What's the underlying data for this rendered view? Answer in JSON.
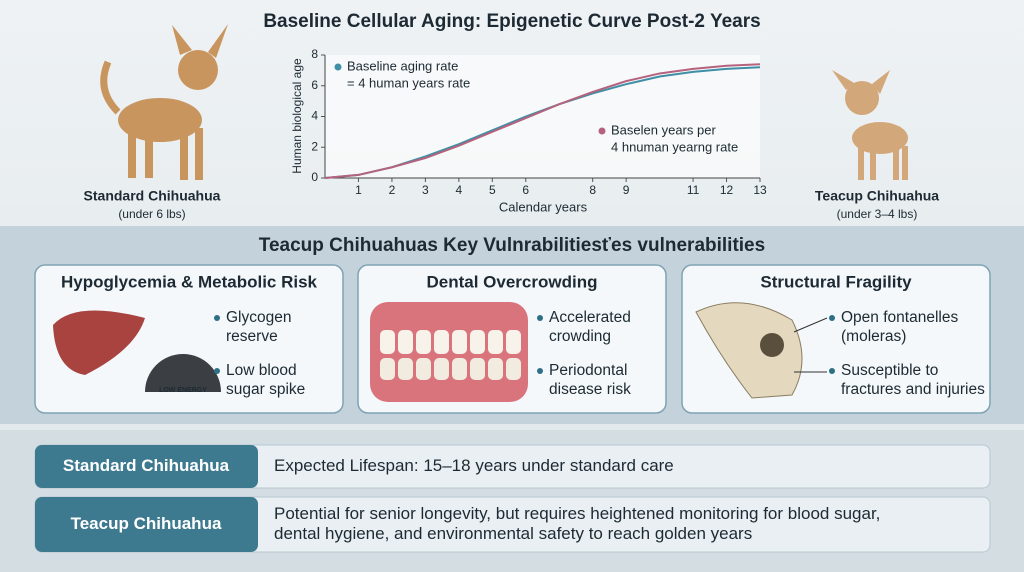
{
  "chart_data": {
    "type": "line",
    "title": "Baseline Cellular Aging: Epigenetic Curve Post-2 Years",
    "x_label": "Calendar years",
    "y_label": "Human biological age",
    "x": [
      0,
      1,
      2,
      3,
      4,
      5,
      6,
      7,
      8,
      9,
      10,
      11,
      12,
      13
    ],
    "series": [
      {
        "name": "Baseline aging rate",
        "color": "#3f8fa6",
        "values": [
          0,
          0.2,
          0.7,
          1.4,
          2.2,
          3.1,
          4.0,
          4.8,
          5.5,
          6.1,
          6.6,
          6.9,
          7.1,
          7.2
        ]
      },
      {
        "name": "Baselen years per",
        "color": "#b5627d",
        "values": [
          0,
          0.2,
          0.7,
          1.3,
          2.1,
          3.0,
          3.9,
          4.8,
          5.6,
          6.3,
          6.8,
          7.1,
          7.3,
          7.4
        ]
      }
    ],
    "legend_notes": [
      "= 4 human years rate",
      "4 hnuman yearng rate"
    ],
    "xlim": [
      0,
      13
    ],
    "ylim": [
      0,
      8
    ],
    "xticks": [
      1,
      2,
      3,
      4,
      5,
      6,
      8,
      9,
      11,
      12,
      13
    ],
    "yticks": [
      0,
      2,
      4,
      6,
      8
    ]
  },
  "dogs": [
    {
      "name": "Standard Chihuahua",
      "weight": "(under 6 lbs)"
    },
    {
      "name": "Teacup Chihuahua",
      "weight": "(under 3–4 lbs)"
    }
  ],
  "vulnerabilities": {
    "title": "Teacup Chihuahuas Key Vulnrabilitiesťes vulnerabilities",
    "cards": [
      {
        "title": "Hypoglycemia & Metabolic Risk",
        "badge": "LOW ENERGY",
        "bullets": [
          [
            "Glycogen",
            "reserve"
          ],
          [
            "Low blood",
            "sugar spike"
          ]
        ]
      },
      {
        "title": "Dental Overcrowding",
        "bullets": [
          [
            "Accelerated",
            "crowding"
          ],
          [
            "Periodontal",
            "disease risk"
          ]
        ]
      },
      {
        "title": "Structural Fragility",
        "bullets": [
          [
            "Open fontanelles",
            "(moleras)"
          ],
          [
            "Susceptible to",
            "fractures and injuries"
          ]
        ]
      }
    ]
  },
  "lifespan": [
    {
      "label": "Standard Chihuahua",
      "text": [
        "Expected Lifespan: 15–18 years under standard care"
      ]
    },
    {
      "label": "Teacup Chihuahua",
      "text": [
        "Potential for senior longevity, but requires heightened monitoring for blood sugar,",
        "dental hygiene, and environmental safety to reach golden years"
      ]
    }
  ]
}
